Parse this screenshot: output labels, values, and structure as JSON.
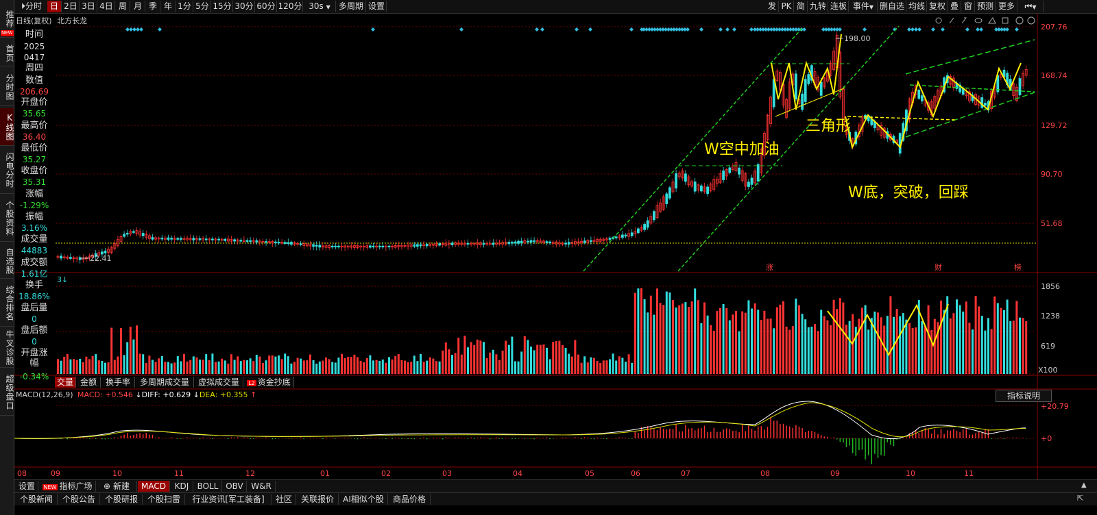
{
  "sidebar": {
    "items": [
      {
        "label": "推荐",
        "badge": "NEW"
      },
      {
        "label": "首页"
      },
      {
        "label": "分时图"
      },
      {
        "label": "K线图"
      },
      {
        "label": "闪电分时"
      },
      {
        "label": "个股资料"
      },
      {
        "label": "自选股"
      },
      {
        "label": "综合排名"
      },
      {
        "label": "牛叉诊股"
      },
      {
        "label": "超级盘口"
      }
    ]
  },
  "toolbar": {
    "left": [
      "分时",
      "日",
      "2日",
      "3日",
      "4日",
      "周",
      "月",
      "季",
      "年",
      "1分",
      "5分",
      "15分",
      "30分",
      "60分",
      "120分",
      "30s",
      "多周期",
      "设置"
    ],
    "right": [
      "发",
      "PK",
      "简",
      "九转",
      "连板",
      "事件",
      "删自选",
      "均线",
      "复权",
      "叠",
      "窗",
      "预测",
      "更多"
    ]
  },
  "chart": {
    "title": "日线(复权)",
    "stock_name": "北方长龙",
    "price_axis": [
      "207.76",
      "168.74",
      "129.72",
      "90.70",
      "51.68"
    ],
    "volume_axis": [
      "1856",
      "1238",
      "619",
      "X100"
    ],
    "macd_axis": [
      "+20.79",
      "+0"
    ],
    "months": [
      "08",
      "09",
      "10",
      "11",
      "12",
      "01",
      "02",
      "03",
      "04",
      "05",
      "06",
      "07",
      "08",
      "09",
      "10",
      "11"
    ],
    "high_label": "198.00",
    "low_label": "22.41",
    "annotations": {
      "w_air": "W空中加油",
      "triangle": "三角形",
      "w_bottom": "W底，突破，回踩"
    },
    "markers": [
      "涨",
      "财",
      "榜"
    ]
  },
  "info_panel": {
    "time_label": "时间",
    "date_year": "2025",
    "date_md": "0417",
    "weekday": "周四",
    "value_label": "数值",
    "value": "206.69",
    "open_label": "开盘价",
    "open": "35.65",
    "high_label": "最高价",
    "high": "36.40",
    "low_label": "最低价",
    "low": "35.27",
    "close_label": "收盘价",
    "close": "35.31",
    "change_label": "涨幅",
    "change": "-1.29%",
    "amplitude_label": "振幅",
    "amplitude": "3.16%",
    "volume_label": "成交量",
    "volume": "44883",
    "amount_label": "成交额",
    "amount": "1.61亿",
    "turnover_label": "换手",
    "turnover": "18.86%",
    "after_vol_label": "盘后量",
    "after_vol": "0",
    "after_amt_label": "盘后额",
    "after_amt": "0",
    "open_change_label": "开盘涨幅",
    "open_change": "-0.34%"
  },
  "volume_tabs": [
    "交量",
    "金额",
    "换手率",
    "多周期成交量",
    "虚拟成交量",
    "资金抄底"
  ],
  "volume_tab_badge": "L2",
  "macd": {
    "name": "MACD(12,26,9)",
    "macd": "MACD: +0.546",
    "diff": "DIFF: +0.629",
    "dea": "DEA: +0.355",
    "explain_button": "指标说明"
  },
  "bottom_tabs1": [
    "设置",
    "指标广场",
    "新建",
    "MACD",
    "KDJ",
    "BOLL",
    "OBV",
    "W&R"
  ],
  "bottom_tabs1_badge": "NEW",
  "bottom_tabs2": [
    "个股新闻",
    "个股公告",
    "个股研报",
    "个股扫雷",
    "行业资讯[军工装备]",
    "社区",
    "关联报价",
    "AI相似个股",
    "商品价格"
  ],
  "colors": {
    "up": "#ff3333",
    "down": "#33dddd",
    "grid": "#7a0000",
    "annotation": "#ffee00",
    "channel": "#22cc22"
  }
}
